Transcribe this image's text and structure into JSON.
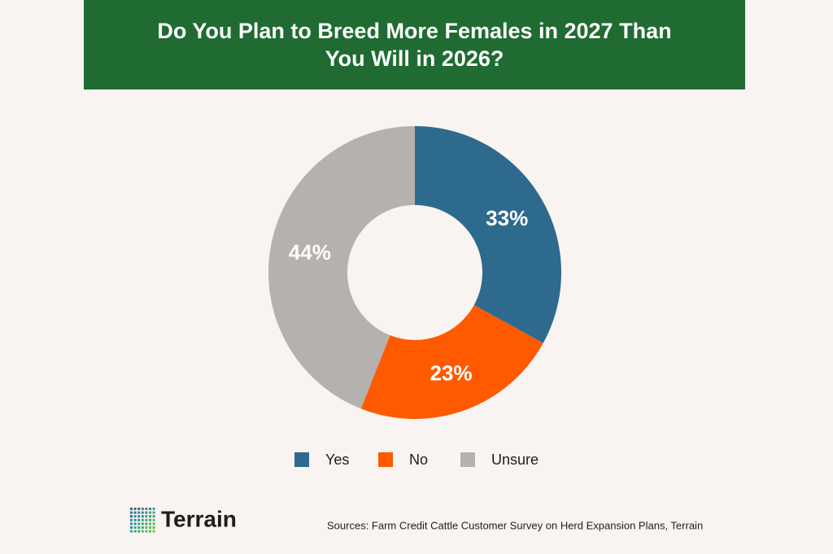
{
  "chart_data": {
    "type": "donut",
    "title": "Do You Plan to Breed More Females in 2027 Than You Will in 2026?",
    "categories": [
      "Yes",
      "No",
      "Unsure"
    ],
    "values": [
      33,
      23,
      44
    ],
    "value_labels": [
      "33%",
      "23%",
      "44%"
    ],
    "colors": [
      "#2e6a8e",
      "#ff5a00",
      "#b5b1ae"
    ],
    "source": "Sources: Farm Credit Cattle Customer Survey on Herd Expansion Plans, Terrain",
    "logo": "Terrain"
  }
}
